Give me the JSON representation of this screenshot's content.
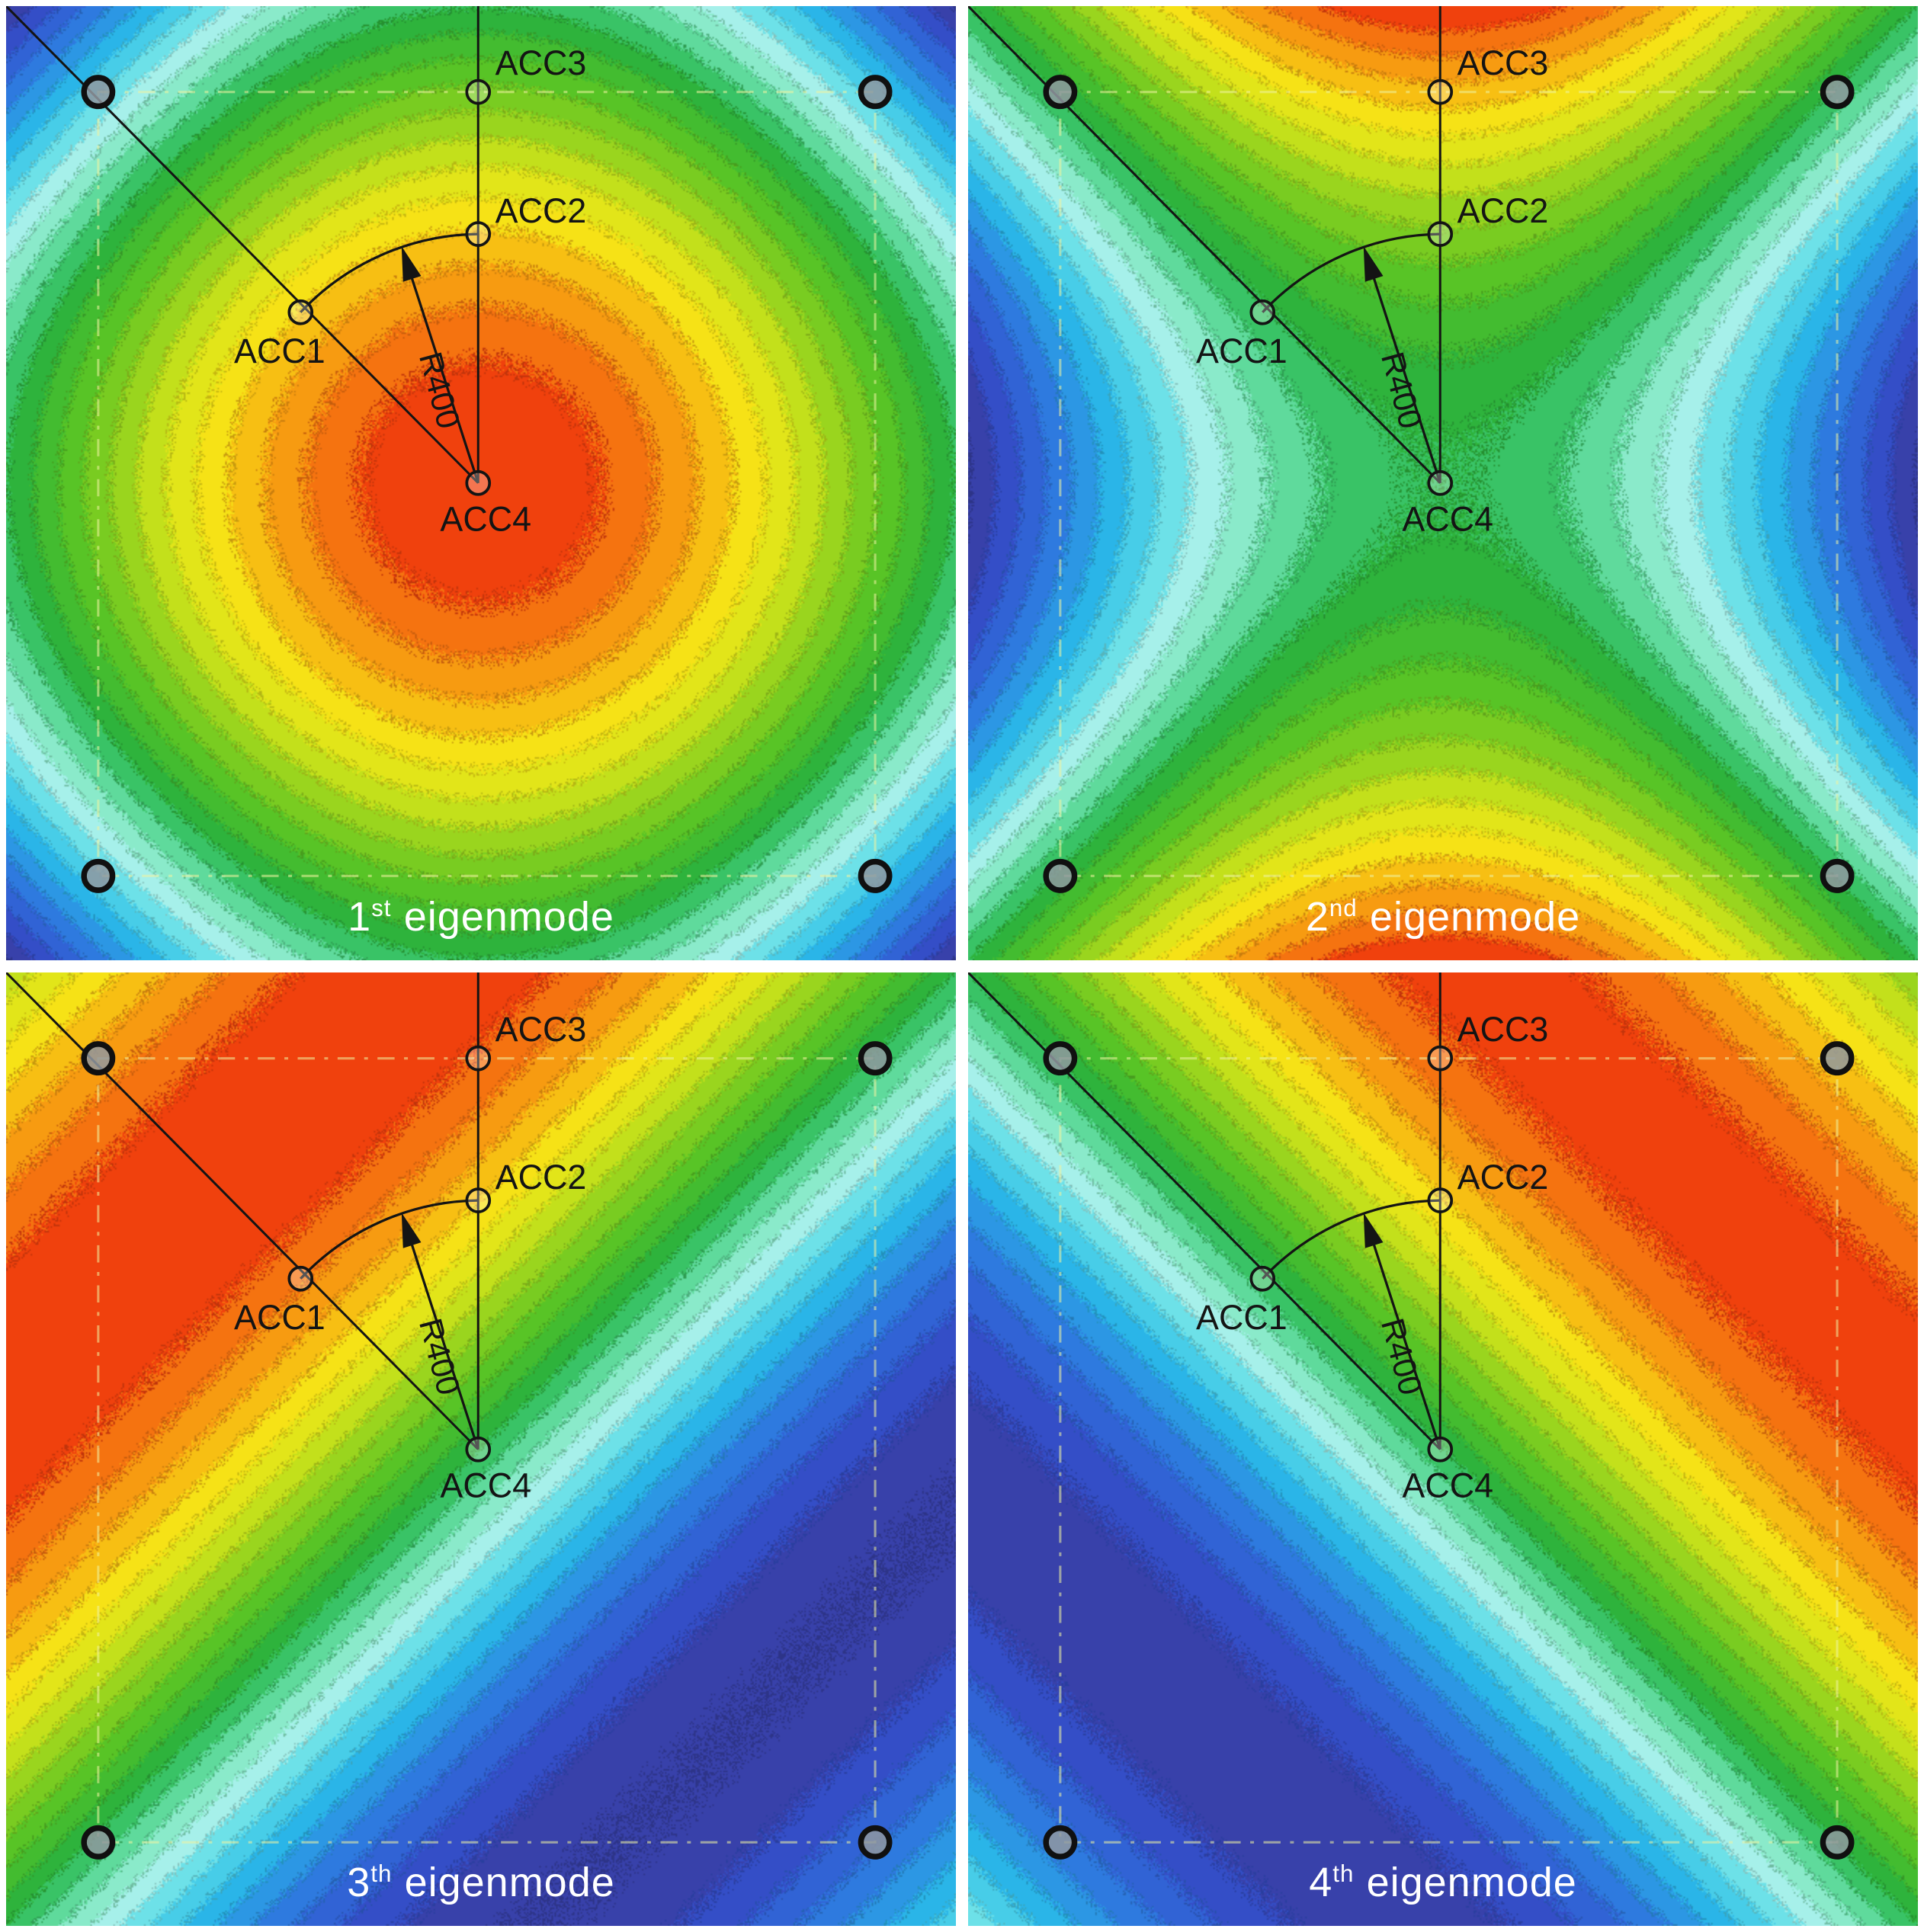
{
  "colormap": {
    "bands": 24,
    "stops": [
      {
        "t": 0.0,
        "color": "#3a3a9c"
      },
      {
        "t": 0.07,
        "color": "#3350cc"
      },
      {
        "t": 0.15,
        "color": "#2e7ce0"
      },
      {
        "t": 0.23,
        "color": "#2ab6e8"
      },
      {
        "t": 0.3,
        "color": "#5cdde8"
      },
      {
        "t": 0.36,
        "color": "#aef2ea"
      },
      {
        "t": 0.42,
        "color": "#72e4b4"
      },
      {
        "t": 0.47,
        "color": "#3cc670"
      },
      {
        "t": 0.52,
        "color": "#2eb33c"
      },
      {
        "t": 0.6,
        "color": "#55c326"
      },
      {
        "t": 0.68,
        "color": "#93d31e"
      },
      {
        "t": 0.75,
        "color": "#d8e51a"
      },
      {
        "t": 0.81,
        "color": "#f6e416"
      },
      {
        "t": 0.87,
        "color": "#f8b212"
      },
      {
        "t": 0.93,
        "color": "#f67c10"
      },
      {
        "t": 0.97,
        "color": "#f24c0e"
      },
      {
        "t": 1.0,
        "color": "#ec280c"
      }
    ]
  },
  "annotations": {
    "radius_label": "R400",
    "arrow_angle_deg": 252,
    "acc_markers": [
      {
        "id": "ACC1",
        "x": 0.31,
        "y": 0.321,
        "label": "ACC1",
        "label_x": 0.288,
        "label_y": 0.374,
        "anchor": "middle"
      },
      {
        "id": "ACC2",
        "x": 0.497,
        "y": 0.239,
        "label": "ACC2",
        "label_x": 0.515,
        "label_y": 0.227,
        "anchor": "start"
      },
      {
        "id": "ACC3",
        "x": 0.497,
        "y": 0.09,
        "label": "ACC3",
        "label_x": 0.515,
        "label_y": 0.072,
        "anchor": "start"
      },
      {
        "id": "ACC4",
        "x": 0.497,
        "y": 0.5,
        "label": "ACC4",
        "label_x": 0.505,
        "label_y": 0.55,
        "anchor": "middle"
      }
    ],
    "bolt_positions": [
      [
        0.097,
        0.09
      ],
      [
        0.915,
        0.09
      ],
      [
        0.097,
        0.912
      ],
      [
        0.915,
        0.912
      ]
    ]
  },
  "panels": [
    {
      "mode": "mode1",
      "caption": {
        "number": "1",
        "ordinal": "st",
        "word": "eigenmode"
      }
    },
    {
      "mode": "mode2",
      "caption": {
        "number": "2",
        "ordinal": "nd",
        "word": "eigenmode"
      }
    },
    {
      "mode": "mode3",
      "caption": {
        "number": "3",
        "ordinal": "th",
        "word": "eigenmode"
      }
    },
    {
      "mode": "mode4",
      "caption": {
        "number": "4",
        "ordinal": "th",
        "word": "eigenmode"
      }
    }
  ],
  "chart_data": [
    {
      "type": "heatmap",
      "title": "1st eigenmode",
      "value_range": [
        -1,
        1
      ],
      "x_normalized": [
        -1,
        -0.5,
        0,
        0.5,
        1
      ],
      "y_normalized": [
        -1,
        -0.5,
        0,
        0.5,
        1
      ],
      "values": [
        [
          -1,
          -0.29,
          0,
          -0.29,
          -1
        ],
        [
          -0.29,
          0.41,
          0.71,
          0.41,
          -0.29
        ],
        [
          0,
          0.71,
          1,
          0.71,
          0
        ],
        [
          -0.29,
          0.41,
          0.71,
          0.41,
          -0.29
        ],
        [
          -1,
          -0.29,
          0,
          -0.29,
          -1
        ]
      ],
      "shape": "dome: maximum at plate center, minima at corners, diamond-shaped mid contours",
      "annotations": [
        "ACC1",
        "ACC2",
        "ACC3",
        "ACC4",
        "R400"
      ],
      "colormap": "rainbow (blue=min, green=zero, red=max)",
      "legend": "none",
      "grid": "off"
    },
    {
      "type": "heatmap",
      "title": "2nd eigenmode",
      "value_range": [
        -1,
        1
      ],
      "x_normalized": [
        -1,
        -0.5,
        0,
        0.5,
        1
      ],
      "y_normalized": [
        -1,
        -0.5,
        0,
        0.5,
        1
      ],
      "values": [
        [
          0,
          0.71,
          1,
          0.71,
          0
        ],
        [
          -0.71,
          0,
          0.29,
          0,
          -0.71
        ],
        [
          -1,
          -0.29,
          0,
          -0.29,
          -1
        ],
        [
          -0.71,
          0,
          0.29,
          0,
          -0.71
        ],
        [
          0,
          0.71,
          1,
          0.71,
          0
        ]
      ],
      "shape": "saddle: maxima at top/bottom edge centers, minima at left/right edge centers, green X nodal region through center",
      "annotations": [
        "ACC1",
        "ACC2",
        "ACC3",
        "ACC4",
        "R400"
      ],
      "colormap": "rainbow (blue=min, green=zero, red=max)",
      "legend": "none",
      "grid": "off"
    },
    {
      "type": "heatmap",
      "title": "3th eigenmode",
      "value_range": [
        -1,
        1
      ],
      "x_normalized": [
        -1,
        -0.5,
        0,
        0.5,
        1
      ],
      "y_normalized": [
        -1,
        -0.5,
        0,
        0.5,
        1
      ],
      "values": [
        [
          0.45,
          0.87,
          0.98,
          0.64,
          0
        ],
        [
          0.87,
          0.98,
          0.64,
          0,
          -0.64
        ],
        [
          0.98,
          0.64,
          0,
          -0.64,
          -0.98
        ],
        [
          0.64,
          0,
          -0.64,
          -0.98,
          -0.87
        ],
        [
          0,
          -0.64,
          -0.98,
          -0.87,
          -0.45
        ]
      ],
      "shape": "diagonal bending: warm (max) band across upper-left half, nodal green band along anti-diagonal, cold (min) band across lower-right half",
      "annotations": [
        "ACC1",
        "ACC2",
        "ACC3",
        "ACC4",
        "R400"
      ],
      "colormap": "rainbow (blue=min, green=zero, red=max)",
      "legend": "none",
      "grid": "off"
    },
    {
      "type": "heatmap",
      "title": "4th eigenmode",
      "value_range": [
        -1,
        1
      ],
      "x_normalized": [
        -1,
        -0.5,
        0,
        0.5,
        1
      ],
      "y_normalized": [
        -1,
        -0.5,
        0,
        0.5,
        1
      ],
      "values": [
        [
          0,
          0.64,
          0.96,
          0.81,
          0.35
        ],
        [
          -0.64,
          0,
          0.64,
          0.96,
          0.81
        ],
        [
          -0.96,
          -0.64,
          0,
          0.64,
          0.96
        ],
        [
          -0.81,
          -0.96,
          -0.64,
          0,
          0.64
        ],
        [
          -0.35,
          -0.81,
          -0.96,
          -0.64,
          0
        ]
      ],
      "shape": "diagonal bending (opposite orientation): warm band through top and right edge centers, nodal green band along main diagonal, cold band through left and bottom edge centers",
      "annotations": [
        "ACC1",
        "ACC2",
        "ACC3",
        "ACC4",
        "R400"
      ],
      "colormap": "rainbow (blue=min, green=zero, red=max)",
      "legend": "none",
      "grid": "off"
    }
  ]
}
